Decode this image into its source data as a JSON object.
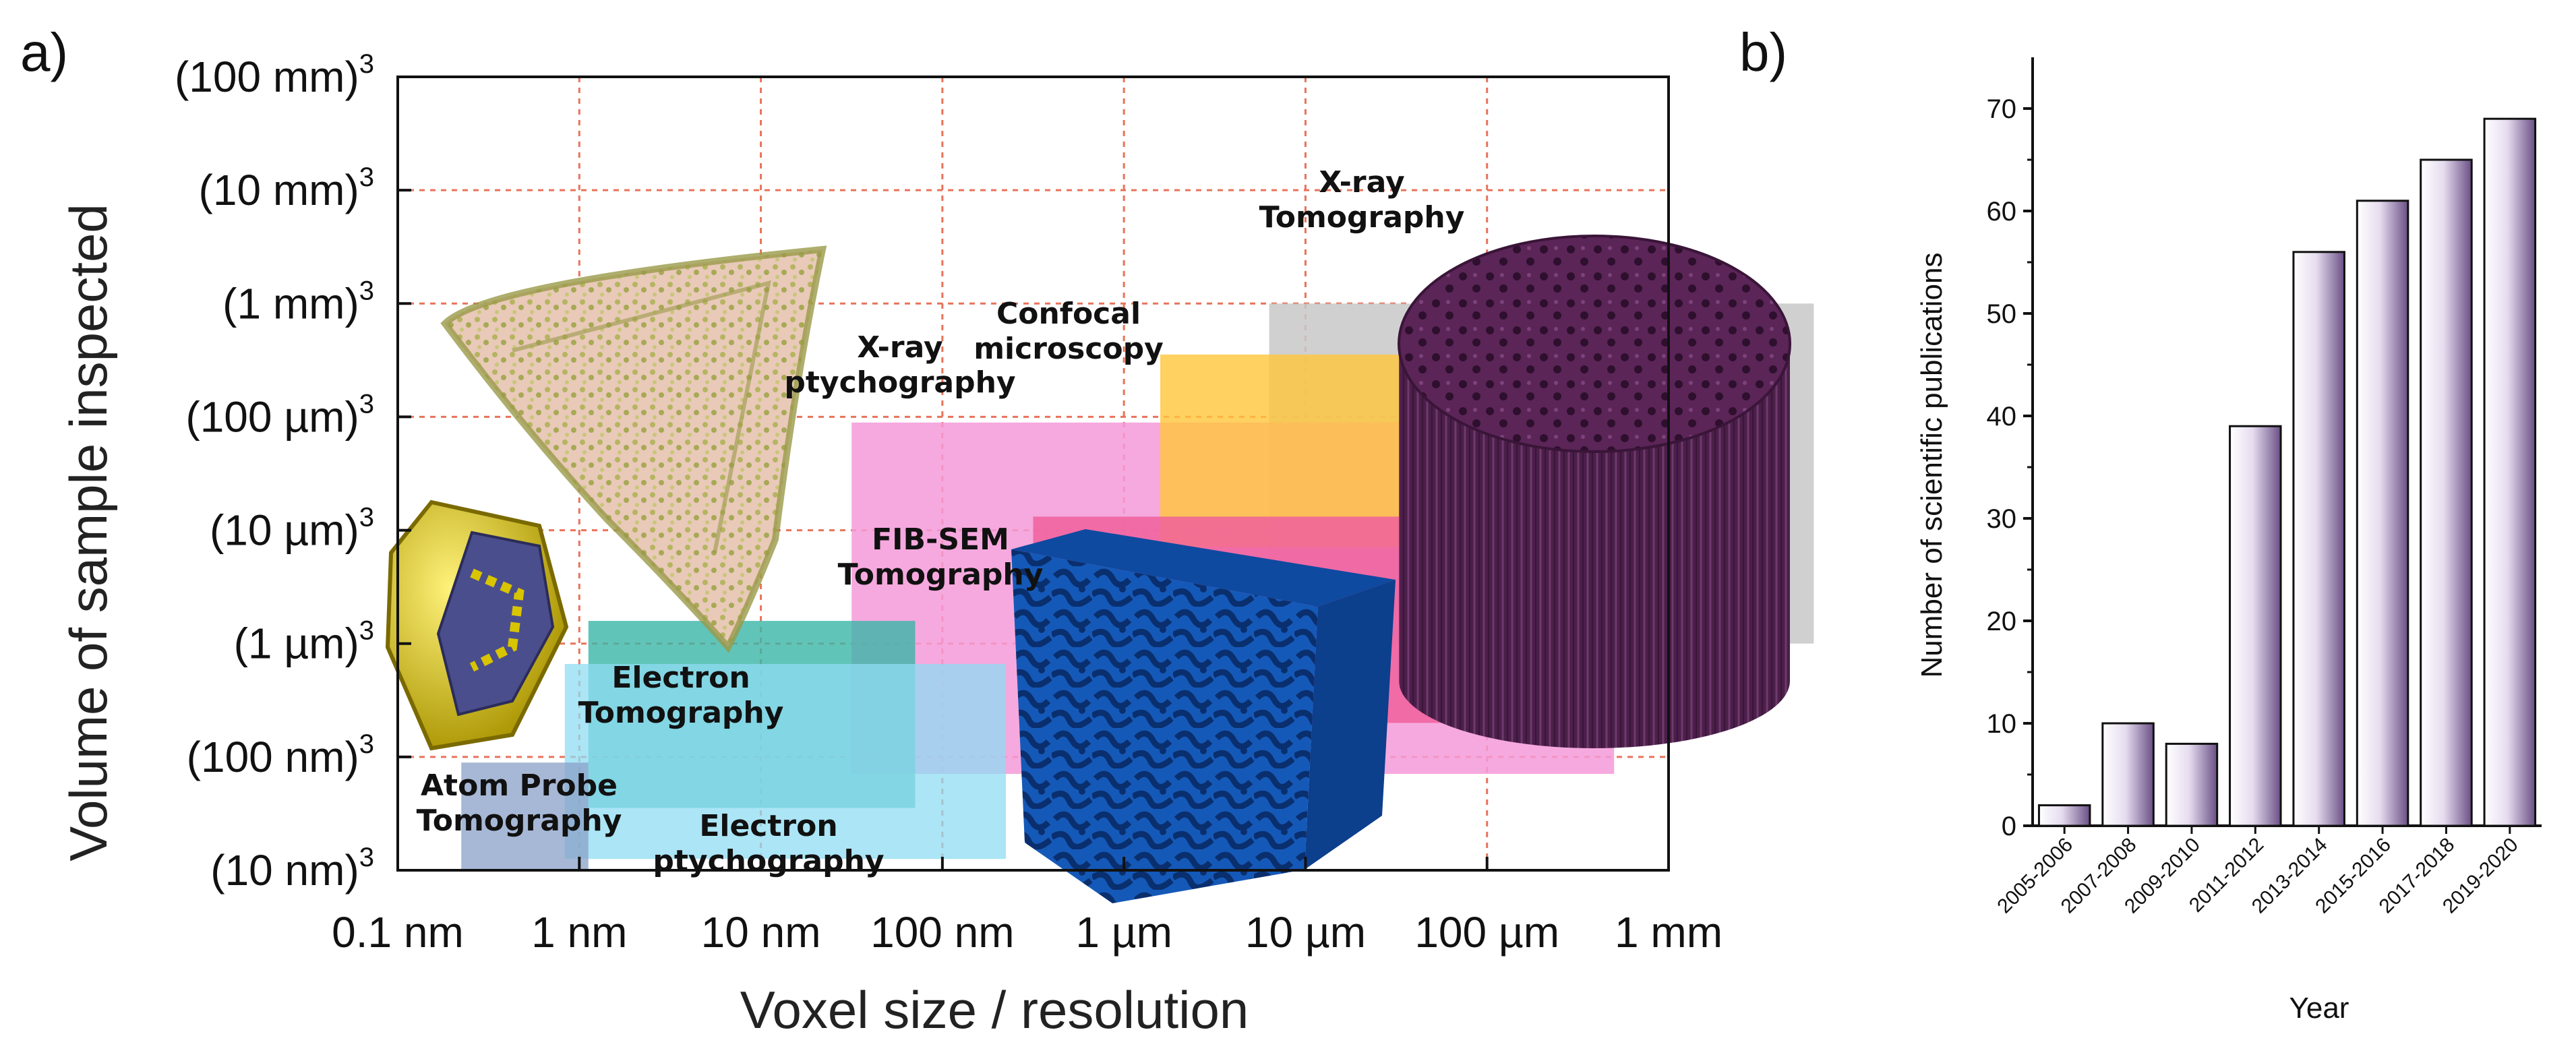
{
  "panels": {
    "a": "a)",
    "b": "b)"
  },
  "chart_data": [
    {
      "type": "range-map",
      "xlabel": "Voxel size / resolution",
      "ylabel": "Volume of sample inspected",
      "x_ticks": [
        "0.1 nm",
        "1 nm",
        "10 nm",
        "100 nm",
        "1 µm",
        "10 µm",
        "100 µm",
        "1 mm"
      ],
      "y_ticks": [
        "(10 nm)",
        "(100 nm)",
        "(1 µm)",
        "(10 µm)",
        "(100 µm)",
        "(1 mm)",
        "(10 mm)",
        "(100 mm)"
      ],
      "y_tick_exponent": "3",
      "x_scale": "log",
      "y_scale": "log",
      "grid": true,
      "regions": [
        {
          "label": [
            "X-ray",
            "Tomography"
          ],
          "color": "#c8c8c8",
          "opacity": 0.85,
          "x": [
            4.8,
            7.8
          ],
          "y": [
            2.0,
            5.0
          ]
        },
        {
          "label": [
            "X-ray",
            "ptychography"
          ],
          "color": "#f59ad8",
          "opacity": 0.85,
          "x": [
            2.5,
            6.7
          ],
          "y": [
            0.85,
            3.95
          ]
        },
        {
          "label": [
            "Confocal",
            "microscopy"
          ],
          "color": "#ffc53a",
          "opacity": 0.8,
          "x": [
            4.2,
            7.2
          ],
          "y": [
            2.85,
            4.55
          ]
        },
        {
          "label": [
            "FIB-SEM",
            "Tomography"
          ],
          "color": "#f0609c",
          "opacity": 0.85,
          "x": [
            3.5,
            6.3
          ],
          "y": [
            1.3,
            3.12
          ]
        },
        {
          "label": [
            "Electron",
            "Tomography"
          ],
          "color": "#3ab5a8",
          "opacity": 0.8,
          "x": [
            1.05,
            2.85
          ],
          "y": [
            0.55,
            2.2
          ]
        },
        {
          "label": [
            "Electron",
            "ptychography"
          ],
          "color": "#8fdcf3",
          "opacity": 0.75,
          "x": [
            0.92,
            3.35
          ],
          "y": [
            0.1,
            1.82
          ]
        },
        {
          "label": [
            "Atom Probe",
            "Tomography"
          ],
          "color": "#8aa0c8",
          "opacity": 0.75,
          "x": [
            0.35,
            1.05
          ],
          "y": [
            0.0,
            0.95
          ]
        }
      ],
      "illustrations": [
        "cell-reconstruction",
        "nanoparticle",
        "porous-cube",
        "fiber-cylinder"
      ]
    },
    {
      "type": "bar",
      "categories": [
        "2005-2006",
        "2007-2008",
        "2009-2010",
        "2011-2012",
        "2013-2014",
        "2015-2016",
        "2017-2018",
        "2019-2020"
      ],
      "values": [
        2,
        10,
        8,
        39,
        56,
        61,
        65,
        69
      ],
      "xlabel": "Year",
      "ylabel": "Number of scientific publications",
      "ylim": [
        0,
        75
      ],
      "yticks": [
        0,
        10,
        20,
        30,
        40,
        50,
        60,
        70
      ],
      "bar_color": "#c9b8da"
    }
  ]
}
